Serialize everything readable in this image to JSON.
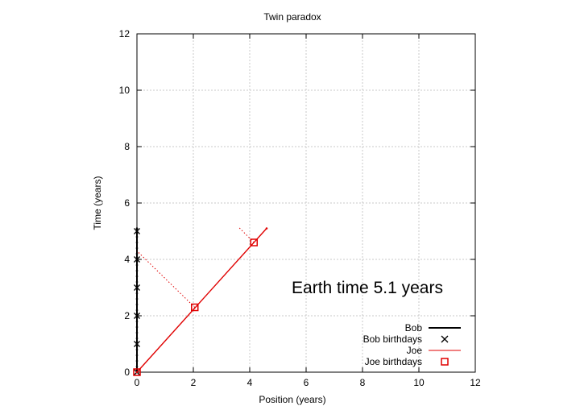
{
  "chart_data": {
    "type": "line",
    "title": "Twin paradox",
    "xlabel": "Position (years)",
    "ylabel": "Time (years)",
    "xlim": [
      0,
      12
    ],
    "ylim": [
      0,
      12
    ],
    "xticks": [
      0,
      2,
      4,
      6,
      8,
      10,
      12
    ],
    "yticks": [
      0,
      2,
      4,
      6,
      8,
      10,
      12
    ],
    "grid": true,
    "legend_position": "bottom-right",
    "annotation": "Earth time  5.1 years",
    "colors": {
      "bob": "#000000",
      "joe": "#e00000"
    },
    "series": [
      {
        "name": "Bob",
        "style": "line",
        "color": "#000000",
        "x": [
          0,
          0,
          0,
          0,
          0,
          0,
          0,
          0,
          0,
          0,
          0,
          0,
          0,
          0,
          0,
          0,
          0,
          0,
          0,
          0,
          0,
          0,
          0,
          0,
          0,
          0,
          0
        ],
        "y": [
          0,
          0.2,
          0.4,
          0.6,
          0.8,
          1.0,
          1.2,
          1.4,
          1.6,
          1.8,
          2.0,
          2.2,
          2.4,
          2.6,
          2.8,
          3.0,
          3.2,
          3.4,
          3.6,
          3.8,
          4.0,
          4.2,
          4.4,
          4.6,
          4.8,
          5.0,
          5.1
        ]
      },
      {
        "name": "Bob birthdays",
        "style": "points-x",
        "color": "#000000",
        "x": [
          0,
          0,
          0,
          0,
          0,
          0
        ],
        "y": [
          0,
          1,
          2,
          3,
          4,
          5
        ]
      },
      {
        "name": "Joe",
        "style": "line",
        "color": "#e00000",
        "x": [
          0,
          4.6
        ],
        "y": [
          0,
          5.1
        ]
      },
      {
        "name": "Joe birthdays",
        "style": "points-square",
        "color": "#e00000",
        "x": [
          0,
          2.05,
          4.15
        ],
        "y": [
          0,
          2.3,
          4.6
        ]
      },
      {
        "name": "",
        "style": "dotted",
        "color": "#e00000",
        "x": [
          2.05,
          0
        ],
        "y": [
          2.3,
          4.3
        ]
      },
      {
        "name": "",
        "style": "dotted",
        "color": "#e00000",
        "x": [
          4.15,
          3.6
        ],
        "y": [
          4.6,
          5.15
        ]
      }
    ]
  }
}
